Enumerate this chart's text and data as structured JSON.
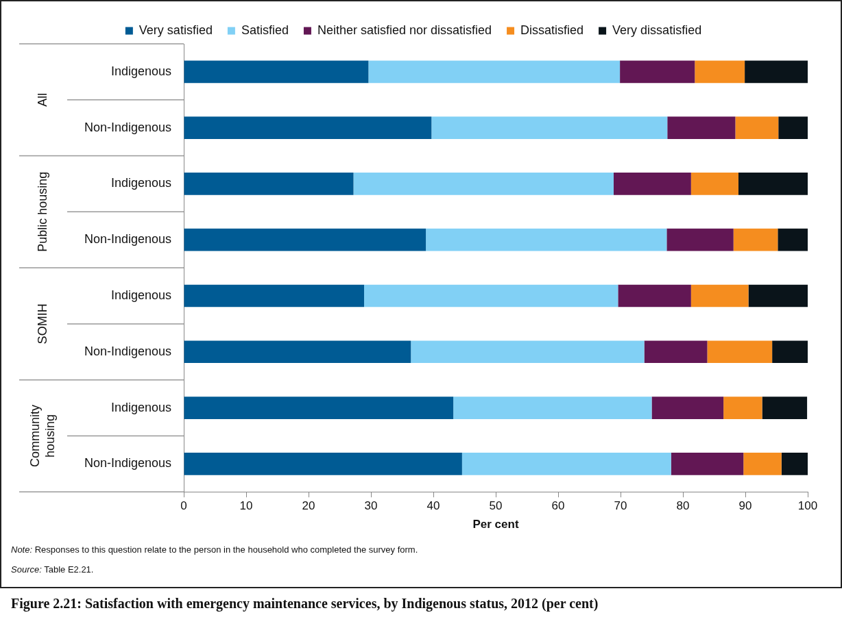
{
  "chart_data": {
    "type": "bar",
    "orientation": "horizontal",
    "stacked": true,
    "title": "Figure 2.21: Satisfaction with emergency maintenance services, by Indigenous status, 2012 (per cent)",
    "xlabel": "Per cent",
    "categories": [
      "Indigenous",
      "Non-Indigenous",
      "Indigenous",
      "Non-Indigenous",
      "Indigenous",
      "Non-Indigenous",
      "Indigenous",
      "Non-Indigenous"
    ],
    "series": [
      {
        "name": "Very satisfied",
        "color": "#005b94",
        "values": [
          29.6,
          39.7,
          27.2,
          38.8,
          28.9,
          36.4,
          43.2,
          44.6
        ]
      },
      {
        "name": "Satisfied",
        "color": "#81d0f5",
        "values": [
          40.3,
          37.8,
          41.7,
          38.6,
          40.7,
          37.4,
          31.8,
          33.5
        ]
      },
      {
        "name": "Neither satisfied nor dissatisfied",
        "color": "#621754",
        "values": [
          12.0,
          10.9,
          12.4,
          10.7,
          11.7,
          10.1,
          11.5,
          11.6
        ]
      },
      {
        "name": "Dissatisfied",
        "color": "#f58d1f",
        "values": [
          8.0,
          6.9,
          7.6,
          7.1,
          9.2,
          10.4,
          6.2,
          6.1
        ]
      },
      {
        "name": "Very dissatisfied",
        "color": "#0a141a",
        "values": [
          10.1,
          4.7,
          11.1,
          4.8,
          9.5,
          5.7,
          7.2,
          4.2
        ]
      }
    ],
    "xlim": [
      0,
      100
    ],
    "xticks": [
      0,
      10,
      20,
      30,
      40,
      50,
      60,
      70,
      80,
      90,
      100
    ],
    "grid": false,
    "legend": "top",
    "annotations": [
      "All",
      "Public housing",
      "SOMIH",
      "Community housing",
      "Note: Responses to this question relate to the person in the household who completed the survey form.",
      "Source: Table E2.21."
    ]
  }
}
